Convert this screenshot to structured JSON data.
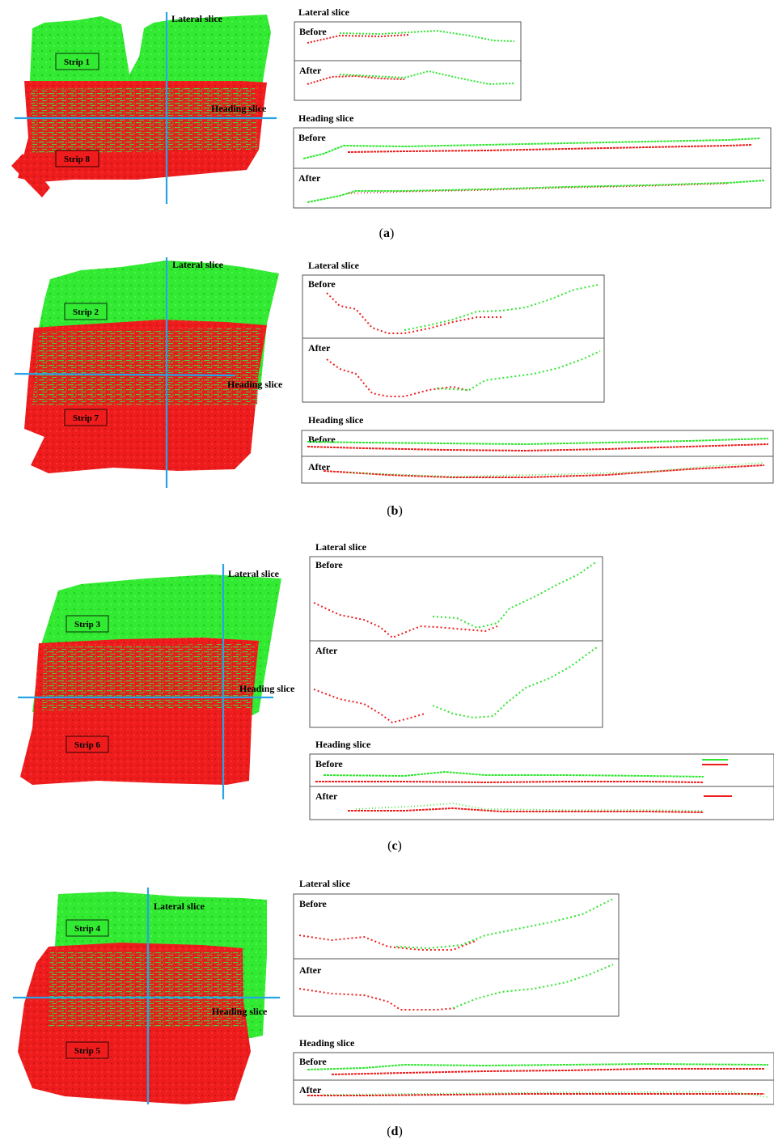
{
  "colors": {
    "strip_green": "#2de62d",
    "strip_red": "#ee1c1c",
    "slice_line": "#29a3e6",
    "frame": "#555555"
  },
  "labels": {
    "lateral_slice": "Lateral slice",
    "heading_slice": "Heading slice",
    "before": "Before",
    "after": "After"
  },
  "panels": [
    {
      "id": "a",
      "caption": "a",
      "strip_top": "Strip 1",
      "strip_bottom": "Strip 8"
    },
    {
      "id": "b",
      "caption": "b",
      "strip_top": "Strip 2",
      "strip_bottom": "Strip 7"
    },
    {
      "id": "c",
      "caption": "c",
      "strip_top": "Strip 3",
      "strip_bottom": "Strip 6"
    },
    {
      "id": "d",
      "caption": "d",
      "strip_top": "Strip 4",
      "strip_bottom": "Strip 5"
    }
  ]
}
